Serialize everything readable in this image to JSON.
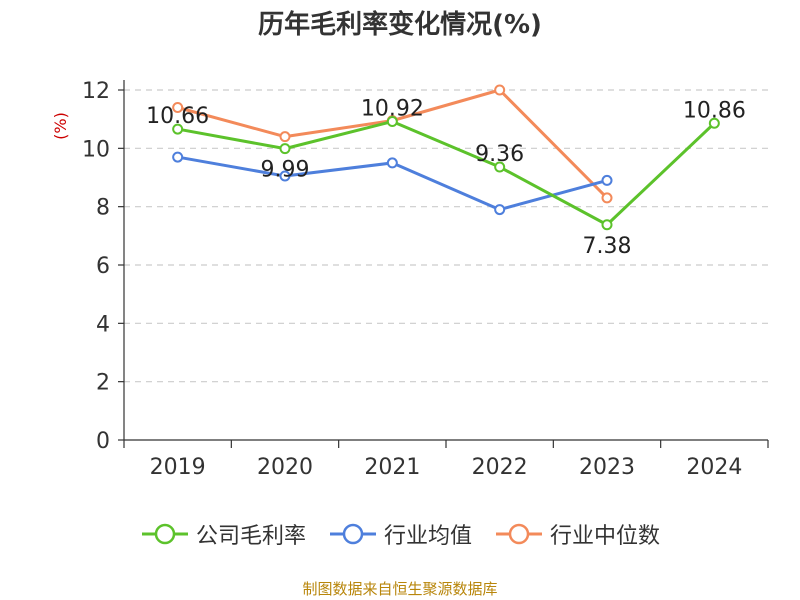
{
  "chart_data": {
    "type": "line",
    "title": "历年毛利率变化情况(%)",
    "ylabel": "(%)",
    "xlabel": "",
    "categories": [
      "2019",
      "2020",
      "2021",
      "2022",
      "2023",
      "2024"
    ],
    "ylim": [
      0,
      12
    ],
    "yticks": [
      0,
      2,
      4,
      6,
      8,
      10,
      12
    ],
    "grid": "horizontal-dashed",
    "legend_position": "bottom",
    "series": [
      {
        "name": "公司毛利率",
        "color": "#5cc22b",
        "values": [
          10.66,
          9.99,
          10.92,
          9.36,
          7.38,
          10.86
        ],
        "data_labels": [
          "10.66",
          "9.99",
          "10.92",
          "9.36",
          "7.38",
          "10.86"
        ]
      },
      {
        "name": "行业均值",
        "color": "#4e7fdc",
        "values": [
          9.7,
          9.05,
          9.5,
          7.9,
          8.9,
          null
        ]
      },
      {
        "name": "行业中位数",
        "color": "#f38a5a",
        "values": [
          11.4,
          10.4,
          10.95,
          12.0,
          8.3,
          null
        ]
      }
    ]
  },
  "source_note": "制图数据来自恒生聚源数据库"
}
